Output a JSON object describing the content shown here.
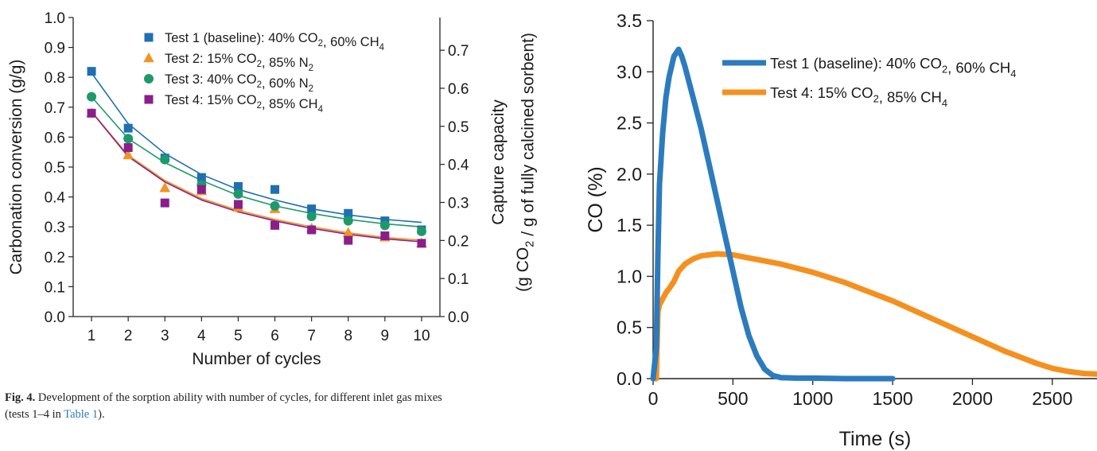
{
  "caption": {
    "label": "Fig. 4.",
    "text_before": "Development of the sorption ability with number of cycles, for different inlet gas mixes (tests 1–4 in ",
    "link": "Table 1",
    "text_after": ")."
  },
  "chart_data": [
    {
      "type": "scatter",
      "xlabel": "Number of cycles",
      "ylabel": "Carbonation conversion (g/g)",
      "y2label_line1": "Capture capacity",
      "y2label_line2": "(g CO2 / g of fully calcined sorbent)",
      "xlim": [
        0.5,
        10.5
      ],
      "ylim": [
        0.0,
        1.0
      ],
      "y2lim": [
        0.0,
        0.786
      ],
      "xticks": [
        1,
        2,
        3,
        4,
        5,
        6,
        7,
        8,
        9,
        10
      ],
      "yticks": [
        "0.0",
        "0.1",
        "0.2",
        "0.3",
        "0.4",
        "0.5",
        "0.6",
        "0.7",
        "0.8",
        "0.9",
        "1.0"
      ],
      "y2ticks": [
        "0.0",
        "0.1",
        "0.2",
        "0.3",
        "0.4",
        "0.5",
        "0.6",
        "0.7"
      ],
      "legend_position": "top-right",
      "series": [
        {
          "name": "Test 1 (baseline): 40% CO2, 60% CH4",
          "marker": "square",
          "color": "#1f6fb2",
          "x": [
            1,
            2,
            3,
            4,
            5,
            6,
            7,
            8,
            9,
            10
          ],
          "y": [
            0.82,
            0.63,
            0.53,
            0.465,
            0.435,
            0.425,
            0.36,
            0.345,
            0.32,
            0.29
          ],
          "fit": [
            0.815,
            0.645,
            0.545,
            0.475,
            0.425,
            0.39,
            0.36,
            0.34,
            0.325,
            0.315
          ]
        },
        {
          "name": "Test 2: 15% CO2, 85% N2",
          "marker": "triangle",
          "color": "#f39321",
          "x": [
            1,
            2,
            3,
            4,
            5,
            6,
            7,
            8,
            9,
            10
          ],
          "y": [
            0.68,
            0.54,
            0.43,
            0.42,
            0.365,
            0.36,
            0.295,
            0.28,
            0.265,
            0.245
          ],
          "fit": [
            0.685,
            0.54,
            0.455,
            0.395,
            0.355,
            0.325,
            0.3,
            0.28,
            0.265,
            0.255
          ]
        },
        {
          "name": "Test 3: 40% CO2, 60% N2",
          "marker": "circle",
          "color": "#1e9a6a",
          "x": [
            1,
            2,
            3,
            4,
            5,
            6,
            7,
            8,
            9,
            10
          ],
          "y": [
            0.735,
            0.595,
            0.525,
            0.44,
            0.41,
            0.37,
            0.335,
            0.32,
            0.305,
            0.285
          ],
          "fit": [
            0.735,
            0.595,
            0.515,
            0.455,
            0.405,
            0.37,
            0.345,
            0.325,
            0.31,
            0.3
          ]
        },
        {
          "name": "Test 4: 15% CO2, 85% CH4",
          "marker": "square",
          "color": "#8a1e8a",
          "x": [
            1,
            2,
            3,
            4,
            5,
            6,
            7,
            8,
            9,
            10
          ],
          "y": [
            0.68,
            0.565,
            0.38,
            0.425,
            0.375,
            0.305,
            0.29,
            0.255,
            0.27,
            0.245
          ],
          "fit": [
            0.685,
            0.535,
            0.45,
            0.39,
            0.35,
            0.32,
            0.295,
            0.275,
            0.26,
            0.25
          ]
        }
      ]
    },
    {
      "type": "line",
      "xlabel": "Time (s)",
      "ylabel": "CO (%)",
      "xlim": [
        0,
        2780
      ],
      "ylim": [
        0.0,
        3.5
      ],
      "xticks": [
        0,
        500,
        1000,
        1500,
        2000,
        2500
      ],
      "yticks": [
        "0.0",
        "0.5",
        "1.0",
        "1.5",
        "2.0",
        "2.5",
        "3.0",
        "3.5"
      ],
      "legend_position": "top-right",
      "series": [
        {
          "name": "Test 1 (baseline): 40% CO2, 60% CH4",
          "color": "#2c7bbf",
          "x": [
            0,
            20,
            30,
            40,
            60,
            80,
            100,
            130,
            160,
            180,
            200,
            250,
            300,
            350,
            400,
            450,
            500,
            550,
            600,
            650,
            700,
            750,
            800,
            900,
            1000,
            1200,
            1500
          ],
          "y": [
            0.0,
            0.3,
            1.2,
            1.9,
            2.4,
            2.75,
            2.95,
            3.15,
            3.22,
            3.15,
            3.05,
            2.75,
            2.45,
            2.1,
            1.75,
            1.4,
            1.05,
            0.7,
            0.42,
            0.22,
            0.09,
            0.03,
            0.01,
            0.005,
            0.005,
            0.0,
            0.0
          ]
        },
        {
          "name": "Test 4: 15% CO2, 85% CH4",
          "color": "#f5901e",
          "x": [
            0,
            20,
            30,
            40,
            60,
            80,
            100,
            130,
            160,
            200,
            250,
            300,
            400,
            500,
            600,
            700,
            800,
            900,
            1000,
            1100,
            1200,
            1300,
            1400,
            1500,
            1600,
            1700,
            1800,
            1900,
            2000,
            2100,
            2200,
            2300,
            2400,
            2500,
            2600,
            2700,
            2780
          ],
          "y": [
            0.0,
            0.0,
            0.65,
            0.72,
            0.78,
            0.84,
            0.88,
            0.95,
            1.05,
            1.12,
            1.17,
            1.2,
            1.22,
            1.21,
            1.18,
            1.15,
            1.12,
            1.08,
            1.04,
            0.99,
            0.94,
            0.88,
            0.82,
            0.76,
            0.69,
            0.62,
            0.55,
            0.48,
            0.41,
            0.34,
            0.27,
            0.21,
            0.15,
            0.1,
            0.07,
            0.05,
            0.045
          ]
        }
      ]
    }
  ]
}
